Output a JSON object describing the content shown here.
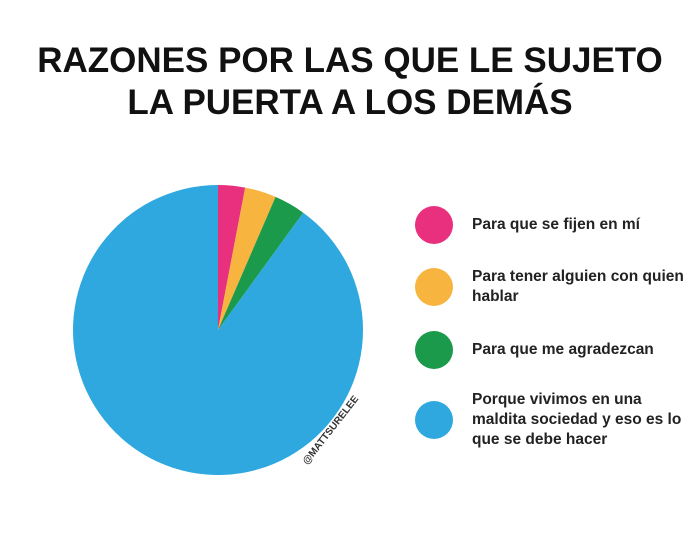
{
  "chart_data": {
    "type": "pie",
    "title": "RAZONES POR LAS QUE LE SUJETO LA PUERTA A LOS DEMÁS",
    "watermark": "@MATTSURELEE",
    "categories": [
      "Para que se fijen en mí",
      "Para tener alguien con quien hablar",
      "Para que me agradezcan",
      "Porque vivimos en una maldita sociedad y eso es lo que se debe hacer"
    ],
    "values": [
      3,
      3.5,
      3.5,
      90
    ],
    "colors": [
      "#e8307e",
      "#f7b43f",
      "#1a9a4a",
      "#2ea8df"
    ]
  }
}
